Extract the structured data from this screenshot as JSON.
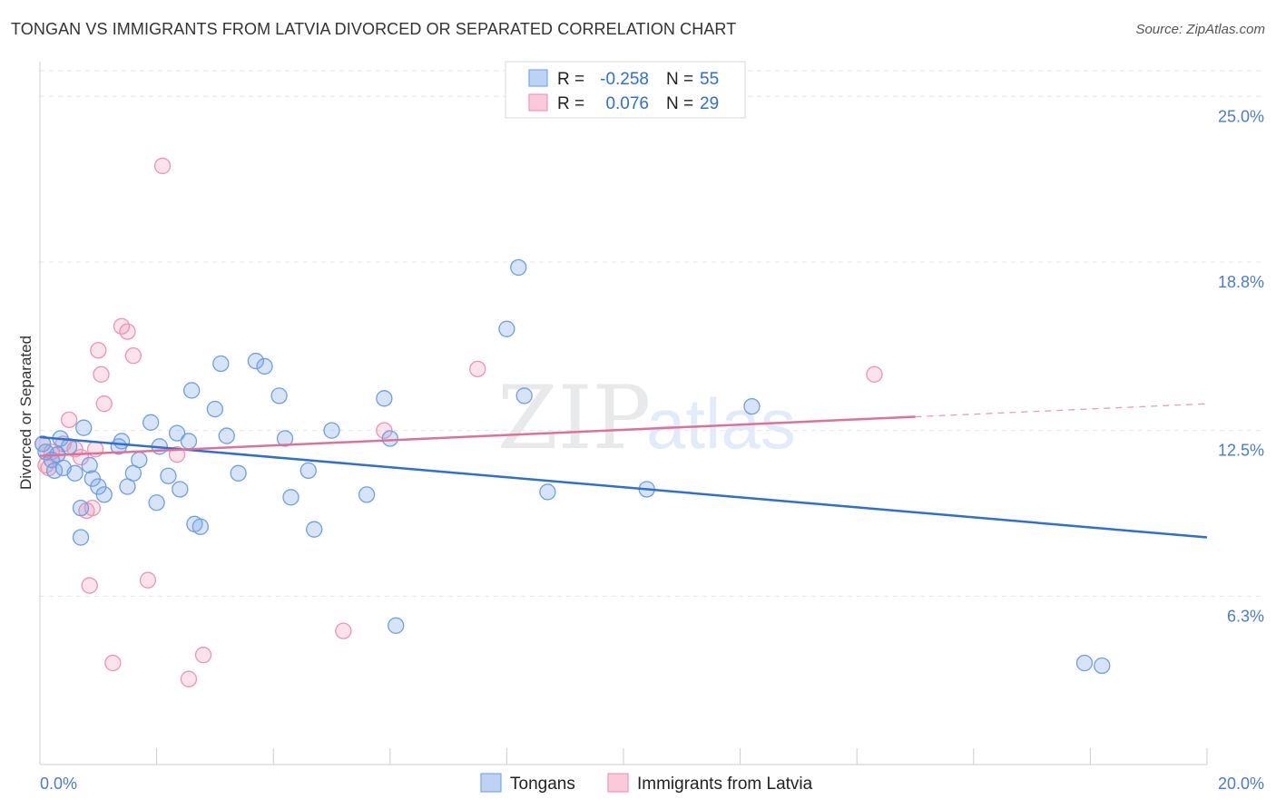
{
  "title": "TONGAN VS IMMIGRANTS FROM LATVIA DIVORCED OR SEPARATED CORRELATION CHART",
  "source": "Source: ZipAtlas.com",
  "colors": {
    "blue": "#7aa7e8",
    "blue_line": "#2f6fd0",
    "pink": "#f19ab8",
    "pink_line": "#e0709a",
    "grid": "#e6e6e6",
    "tick_text": "#4a7cc9"
  },
  "legend": {
    "r_label": "R =",
    "n_label": "N =",
    "rows": [
      {
        "series": "Tongans",
        "r": "-0.258",
        "n": "55"
      },
      {
        "series": "Immigrants from Latvia",
        "r": "0.076",
        "n": "29"
      }
    ]
  },
  "watermark": {
    "zip": "ZIP",
    "atlas": "atlas"
  },
  "chart_data": {
    "type": "scatter",
    "ylabel": "Divorced or Separated",
    "xlim": [
      0,
      20
    ],
    "ylim": [
      0,
      26.3
    ],
    "x_tick_labels": [
      "0.0%",
      "20.0%"
    ],
    "y_ticks": [
      {
        "value": 6.3,
        "label": "6.3%"
      },
      {
        "value": 12.5,
        "label": "12.5%"
      },
      {
        "value": 18.8,
        "label": "18.8%"
      },
      {
        "value": 25.0,
        "label": "25.0%"
      }
    ],
    "grid": true,
    "series": [
      {
        "name": "Tongans",
        "color": "#7aa7e8",
        "trend": {
          "x0": 0,
          "y0": 12.25,
          "x1": 20,
          "y1": 8.5,
          "dashed_from": null
        },
        "points": [
          [
            0.05,
            12.0
          ],
          [
            0.1,
            11.7
          ],
          [
            0.2,
            11.4
          ],
          [
            0.25,
            11.0
          ],
          [
            0.3,
            11.6
          ],
          [
            0.35,
            12.2
          ],
          [
            0.4,
            11.1
          ],
          [
            0.5,
            11.9
          ],
          [
            0.6,
            10.9
          ],
          [
            0.7,
            9.6
          ],
          [
            0.75,
            12.6
          ],
          [
            0.85,
            11.2
          ],
          [
            0.9,
            10.7
          ],
          [
            1.0,
            10.4
          ],
          [
            1.1,
            10.1
          ],
          [
            1.35,
            11.9
          ],
          [
            1.4,
            12.1
          ],
          [
            1.5,
            10.4
          ],
          [
            1.6,
            10.9
          ],
          [
            1.7,
            11.4
          ],
          [
            1.9,
            12.8
          ],
          [
            2.0,
            9.8
          ],
          [
            2.05,
            11.9
          ],
          [
            2.2,
            10.8
          ],
          [
            2.35,
            12.4
          ],
          [
            2.4,
            10.3
          ],
          [
            2.55,
            12.1
          ],
          [
            2.6,
            14.0
          ],
          [
            2.65,
            9.0
          ],
          [
            2.75,
            8.9
          ],
          [
            3.0,
            13.3
          ],
          [
            3.1,
            15.0
          ],
          [
            3.2,
            12.3
          ],
          [
            3.4,
            10.9
          ],
          [
            3.7,
            15.1
          ],
          [
            3.85,
            14.9
          ],
          [
            4.1,
            13.8
          ],
          [
            4.2,
            12.2
          ],
          [
            4.3,
            10.0
          ],
          [
            4.6,
            11.0
          ],
          [
            4.7,
            8.8
          ],
          [
            5.0,
            12.5
          ],
          [
            5.6,
            10.1
          ],
          [
            5.9,
            13.7
          ],
          [
            6.0,
            12.2
          ],
          [
            6.1,
            5.2
          ],
          [
            8.0,
            16.3
          ],
          [
            8.2,
            18.6
          ],
          [
            8.3,
            13.8
          ],
          [
            8.7,
            10.2
          ],
          [
            10.4,
            10.3
          ],
          [
            12.2,
            13.4
          ],
          [
            17.9,
            3.8
          ],
          [
            18.2,
            3.7
          ],
          [
            0.7,
            8.5
          ]
        ]
      },
      {
        "name": "Immigrants from Latvia",
        "color": "#f19ab8",
        "trend": {
          "x0": 0,
          "y0": 11.55,
          "x1": 20,
          "y1": 13.5,
          "dashed_from": 15
        },
        "points": [
          [
            0.05,
            12.0
          ],
          [
            0.1,
            11.2
          ],
          [
            0.2,
            11.7
          ],
          [
            0.3,
            11.6
          ],
          [
            0.4,
            12.0
          ],
          [
            0.5,
            12.9
          ],
          [
            0.6,
            11.8
          ],
          [
            0.7,
            11.5
          ],
          [
            0.8,
            9.5
          ],
          [
            0.85,
            6.7
          ],
          [
            0.9,
            9.6
          ],
          [
            0.95,
            11.8
          ],
          [
            1.0,
            15.5
          ],
          [
            1.05,
            14.6
          ],
          [
            1.1,
            13.5
          ],
          [
            1.25,
            3.8
          ],
          [
            1.4,
            16.4
          ],
          [
            1.5,
            16.2
          ],
          [
            1.6,
            15.3
          ],
          [
            1.85,
            6.9
          ],
          [
            2.1,
            22.4
          ],
          [
            2.35,
            11.6
          ],
          [
            2.55,
            3.2
          ],
          [
            2.8,
            4.1
          ],
          [
            5.2,
            5.0
          ],
          [
            5.9,
            12.5
          ],
          [
            7.5,
            14.8
          ],
          [
            14.3,
            14.6
          ],
          [
            0.15,
            11.1
          ]
        ]
      }
    ]
  },
  "bottom_legend": [
    "Tongans",
    "Immigrants from Latvia"
  ]
}
